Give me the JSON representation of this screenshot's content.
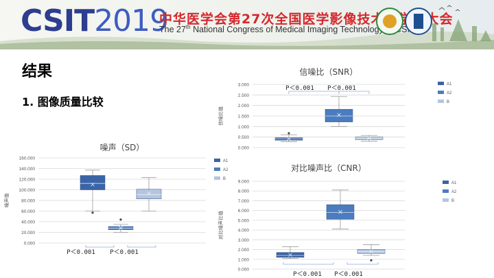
{
  "banner": {
    "logo_main": "CSIT",
    "logo_year": "2019",
    "title_cn": "中华医学会第27次全国医学影像技术学学术大会",
    "title_en_pre": "The 27",
    "title_en_sup": "th",
    "title_en_post": " National Congress of Medical Imaging Technology of CSIT"
  },
  "slide": {
    "heading": "结果",
    "subheading": "1. 图像质量比较"
  },
  "legend_labels": [
    "A1",
    "A2",
    "B"
  ],
  "colors": {
    "A1": "#3a64a6",
    "A2": "#4a7cbf",
    "B": "#b3c5e0",
    "axis": "#d9d9d9",
    "bracket": "#8faadc"
  },
  "charts": [
    {
      "id": "snr",
      "title": "信噪比（SNR）",
      "ylabel": "信噪比值",
      "ylim": [
        0,
        3.0
      ],
      "yticks": [
        "0.000",
        "0.500",
        "1.000",
        "1.500",
        "2.000",
        "2.500",
        "3.000"
      ],
      "ptext": [
        "P＜0.001",
        "P＜0.001"
      ],
      "chart_data": {
        "type": "box",
        "series": [
          {
            "name": "A1",
            "min": 0.28,
            "q1": 0.35,
            "median": 0.42,
            "q3": 0.47,
            "max": 0.6,
            "mean": 0.42,
            "outliers": [
              0.68
            ]
          },
          {
            "name": "A2",
            "min": 1.0,
            "q1": 1.22,
            "median": 1.5,
            "q3": 1.82,
            "max": 2.42,
            "mean": 1.55,
            "outliers": []
          },
          {
            "name": "B",
            "min": 0.3,
            "q1": 0.38,
            "median": 0.45,
            "q3": 0.5,
            "max": 0.58,
            "mean": 0.45,
            "outliers": []
          }
        ]
      }
    },
    {
      "id": "sd",
      "title": "噪声（SD）",
      "ylabel": "噪声值",
      "ylim": [
        0,
        160
      ],
      "yticks": [
        "0.000",
        "20.000",
        "40.000",
        "60.000",
        "80.000",
        "100.000",
        "120.000",
        "140.000",
        "160.000"
      ],
      "ptext": [
        "P＜0.001",
        "P＜0.001"
      ],
      "chart_data": {
        "type": "box",
        "series": [
          {
            "name": "A1",
            "min": 60,
            "q1": 100,
            "median": 112,
            "q3": 127,
            "max": 137,
            "mean": 110,
            "outliers": [
              57
            ]
          },
          {
            "name": "A2",
            "min": 20,
            "q1": 25,
            "median": 28,
            "q3": 31,
            "max": 35,
            "mean": 28,
            "outliers": [
              44
            ]
          },
          {
            "name": "B",
            "min": 60,
            "q1": 83,
            "median": 91,
            "q3": 101,
            "max": 123,
            "mean": 93,
            "outliers": []
          }
        ]
      }
    },
    {
      "id": "cnr",
      "title": "对比噪声比（CNR）",
      "ylabel": "对比噪声比值",
      "ylim": [
        0,
        9.0
      ],
      "yticks": [
        "0.000",
        "1.000",
        "2.000",
        "3.000",
        "4.000",
        "5.000",
        "6.000",
        "7.000",
        "8.000",
        "9.000"
      ],
      "ptext": [
        "P＜0.001",
        "P＜0.001"
      ],
      "chart_data": {
        "type": "box",
        "series": [
          {
            "name": "A1",
            "min": 1.1,
            "q1": 1.2,
            "median": 1.4,
            "q3": 1.7,
            "max": 2.3,
            "mean": 1.45,
            "outliers": []
          },
          {
            "name": "A2",
            "min": 4.1,
            "q1": 5.1,
            "median": 5.8,
            "q3": 6.6,
            "max": 8.1,
            "mean": 5.85,
            "outliers": []
          },
          {
            "name": "B",
            "min": 1.4,
            "q1": 1.6,
            "median": 1.8,
            "q3": 2.0,
            "max": 2.5,
            "mean": 1.8,
            "outliers": [
              0.9
            ]
          }
        ]
      }
    }
  ]
}
